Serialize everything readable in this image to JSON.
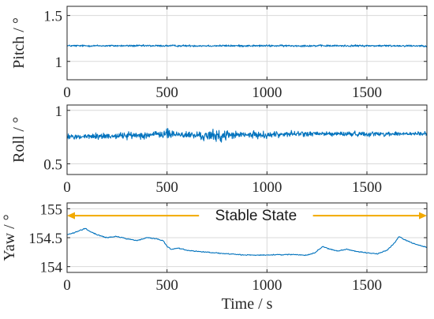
{
  "chart_data": [
    {
      "type": "line",
      "ylabel": "Pitch / °",
      "xlabel": "",
      "xlim": [
        0,
        1800
      ],
      "ylim": [
        0.8,
        1.6
      ],
      "xticks": [
        0,
        500,
        1000,
        1500
      ],
      "yticks": [
        1,
        1.5
      ],
      "ytick_labels": [
        "1",
        "1.5"
      ],
      "grid": true,
      "series": [
        {
          "x": [
            0,
            300,
            600,
            900,
            1200,
            1500,
            1800
          ],
          "values": [
            1.17,
            1.17,
            1.17,
            1.17,
            1.17,
            1.17,
            1.17
          ],
          "noise_amplitude": 0.015
        }
      ]
    },
    {
      "type": "line",
      "ylabel": "Roll / °",
      "xlabel": "",
      "xlim": [
        0,
        1800
      ],
      "ylim": [
        0.4,
        1.05
      ],
      "xticks": [
        0,
        500,
        1000,
        1500
      ],
      "yticks": [
        0.5,
        1
      ],
      "ytick_labels": [
        "0.5",
        "1"
      ],
      "grid": true,
      "series": [
        {
          "x": [
            0,
            200,
            400,
            500,
            600,
            700,
            780,
            800,
            900,
            1000,
            1100,
            1300,
            1500,
            1700,
            1800
          ],
          "values": [
            0.75,
            0.76,
            0.77,
            0.78,
            0.77,
            0.76,
            0.76,
            0.77,
            0.77,
            0.77,
            0.78,
            0.78,
            0.78,
            0.78,
            0.78
          ],
          "noise_amplitude_by_x": [
            [
              0,
              0.04
            ],
            [
              450,
              0.05
            ],
            [
              520,
              0.07
            ],
            [
              620,
              0.045
            ],
            [
              760,
              0.09
            ],
            [
              830,
              0.05
            ],
            [
              1000,
              0.045
            ],
            [
              1200,
              0.035
            ],
            [
              1800,
              0.03
            ]
          ]
        }
      ]
    },
    {
      "type": "line",
      "ylabel": "Yaw / °",
      "xlabel": "Time / s",
      "xlim": [
        0,
        1800
      ],
      "ylim": [
        153.9,
        155.1
      ],
      "xticks": [
        0,
        500,
        1000,
        1500
      ],
      "yticks": [
        154,
        154.5,
        155
      ],
      "ytick_labels": [
        "154",
        "154.5",
        "155"
      ],
      "grid": true,
      "series": [
        {
          "x": [
            0,
            30,
            60,
            90,
            120,
            150,
            200,
            250,
            300,
            350,
            400,
            450,
            480,
            500,
            520,
            560,
            600,
            700,
            800,
            900,
            1000,
            1100,
            1200,
            1240,
            1280,
            1300,
            1350,
            1400,
            1450,
            1500,
            1550,
            1600,
            1640,
            1660,
            1680,
            1700,
            1720,
            1750,
            1800
          ],
          "values": [
            154.55,
            154.58,
            154.62,
            154.66,
            154.6,
            154.55,
            154.5,
            154.52,
            154.48,
            154.45,
            154.5,
            154.48,
            154.45,
            154.35,
            154.3,
            154.32,
            154.28,
            154.25,
            154.22,
            154.2,
            154.2,
            154.21,
            154.2,
            154.24,
            154.35,
            154.32,
            154.27,
            154.3,
            154.26,
            154.24,
            154.22,
            154.28,
            154.42,
            154.52,
            154.48,
            154.45,
            154.42,
            154.38,
            154.33
          ]
        }
      ],
      "annotations": [
        {
          "text": "Stable State",
          "arrow_from": 660,
          "arrow_to": 0,
          "arrow_from_right": 1230,
          "arrow_to_right": 1800,
          "y": 154.88,
          "arrow_color": "#f2a900"
        }
      ]
    }
  ],
  "colors": {
    "line": "#0072bd",
    "grid": "#d9d9d9",
    "axis": "#262626",
    "arrow": "#f2a900"
  }
}
